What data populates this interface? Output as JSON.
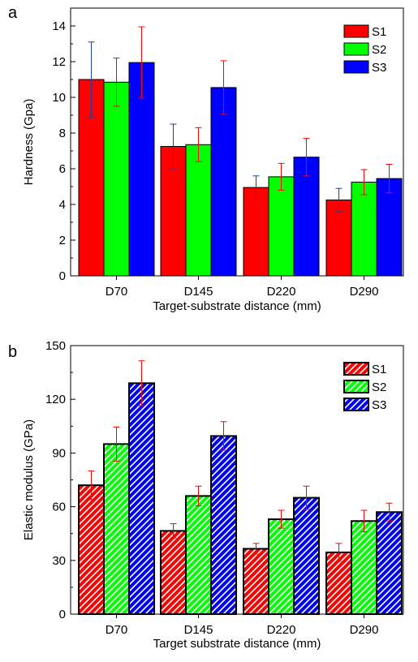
{
  "chart_data": [
    {
      "panel": "a",
      "type": "bar",
      "title": "",
      "xlabel": "Target-substrate distance (mm)",
      "ylabel": "Hardness (Gpa)",
      "ylim": [
        0,
        15
      ],
      "yticks": [
        0,
        2,
        4,
        6,
        8,
        10,
        12,
        14
      ],
      "categories": [
        "D70",
        "D145",
        "D220",
        "D290"
      ],
      "series": [
        {
          "name": "S1",
          "color": "#ff0000",
          "values": [
            11.0,
            7.25,
            4.95,
            4.25
          ],
          "errors": [
            2.1,
            1.25,
            0.65,
            0.65
          ],
          "error_color": "#1f3fa8"
        },
        {
          "name": "S2",
          "color": "#00ff00",
          "values": [
            10.85,
            7.35,
            5.55,
            5.25
          ],
          "errors": [
            1.35,
            0.95,
            0.75,
            0.7
          ],
          "error_color": "#ff0000"
        },
        {
          "name": "S3",
          "color": "#0000ff",
          "values": [
            11.95,
            10.55,
            6.65,
            5.45
          ],
          "errors": [
            2.0,
            1.5,
            1.05,
            0.8
          ],
          "error_color": "#ff0000"
        }
      ],
      "hatched": false,
      "legend_position": "top-right",
      "grid": false
    },
    {
      "panel": "b",
      "type": "bar",
      "title": "",
      "xlabel": "Target substrate distance (mm)",
      "ylabel": "Elastic modulus (GPa)",
      "ylim": [
        0,
        150
      ],
      "yticks": [
        0,
        30,
        60,
        90,
        120,
        150
      ],
      "categories": [
        "D70",
        "D145",
        "D220",
        "D290"
      ],
      "series": [
        {
          "name": "S1",
          "color": "#ff0000",
          "values": [
            72,
            46.5,
            36.5,
            34.5
          ],
          "errors": [
            8,
            4,
            3,
            5
          ],
          "error_color": "#ff0000"
        },
        {
          "name": "S2",
          "color": "#00ff00",
          "values": [
            95,
            66,
            53,
            52
          ],
          "errors": [
            9.5,
            5.5,
            5,
            6
          ],
          "error_color": "#ff0000"
        },
        {
          "name": "S3",
          "color": "#0000ff",
          "values": [
            129,
            99.5,
            65,
            57
          ],
          "errors": [
            12.5,
            8,
            6.5,
            5
          ],
          "error_color": "#ff0000"
        }
      ],
      "hatched": true,
      "legend_position": "top-right",
      "grid": false
    }
  ]
}
